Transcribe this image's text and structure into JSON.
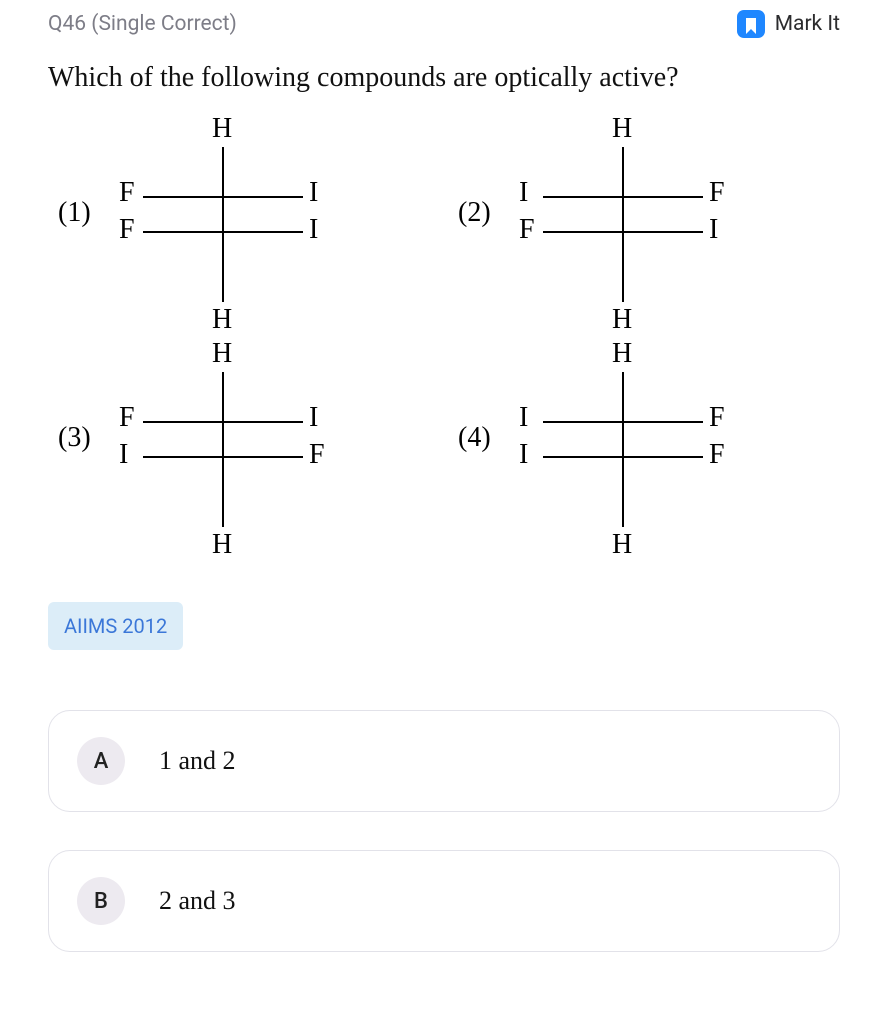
{
  "header": {
    "qnum": "Q46 (Single Correct)",
    "mark_label": "Mark It",
    "mark_icon_color": "#1f87ff"
  },
  "question": "Which of the following compounds are optically active?",
  "diagrams": [
    {
      "num": "(1)",
      "top": "H",
      "bottom": "H",
      "left_upper": "F",
      "right_upper": "I",
      "left_lower": "F",
      "right_lower": "I"
    },
    {
      "num": "(2)",
      "top": "H",
      "bottom": "H",
      "left_upper": "I",
      "right_upper": "F",
      "left_lower": "F",
      "right_lower": "I"
    },
    {
      "num": "(3)",
      "top": "H",
      "bottom": "H",
      "left_upper": "F",
      "right_upper": "I",
      "left_lower": "I",
      "right_lower": "F"
    },
    {
      "num": "(4)",
      "top": "H",
      "bottom": "H",
      "left_upper": "I",
      "right_upper": "F",
      "left_lower": "I",
      "right_lower": "F"
    }
  ],
  "source_tag": "AIIMS 2012",
  "options": [
    {
      "letter": "A",
      "text": "1 and 2"
    },
    {
      "letter": "B",
      "text": "2 and 3"
    }
  ],
  "style": {
    "line_color": "#000000",
    "line_width": 2,
    "label_fontsize": 28
  }
}
